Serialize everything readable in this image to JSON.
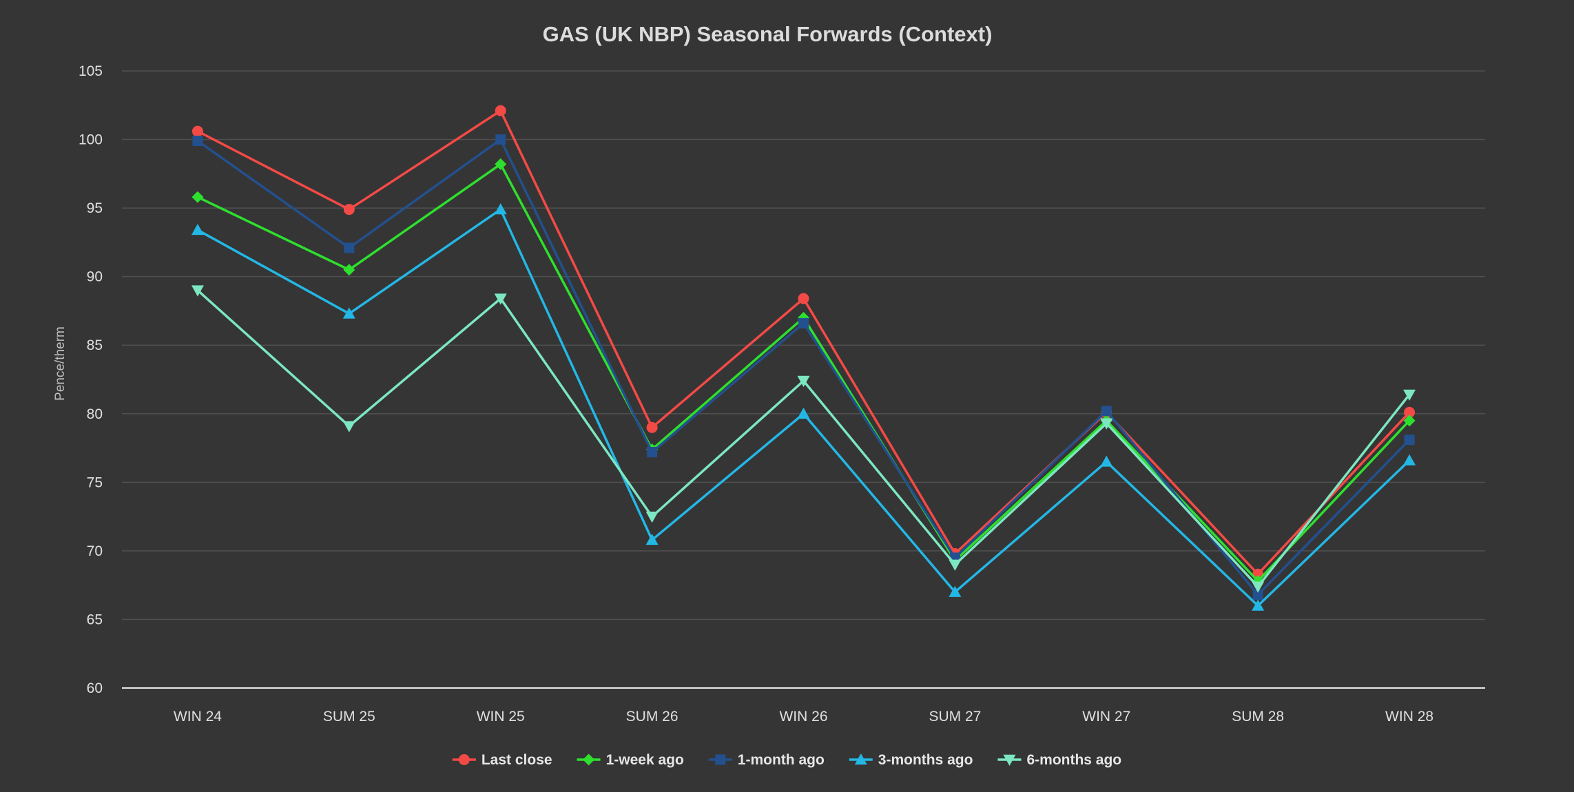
{
  "chart_data": {
    "type": "line",
    "title": "GAS (UK NBP) Seasonal Forwards (Context)",
    "xlabel": "",
    "ylabel": "Pence/therm",
    "ylim": [
      60,
      105
    ],
    "yticks": [
      60,
      65,
      70,
      75,
      80,
      85,
      90,
      95,
      100,
      105
    ],
    "grid": true,
    "legend_position": "bottom-center",
    "categories": [
      "WIN 24",
      "SUM 25",
      "WIN 25",
      "SUM 26",
      "WIN 26",
      "SUM 27",
      "WIN 27",
      "SUM 28",
      "WIN 28"
    ],
    "series": [
      {
        "name": "Last close",
        "color": "#f44a46",
        "marker": "circle",
        "values": [
          100.6,
          94.9,
          102.1,
          79.0,
          88.4,
          69.8,
          80.1,
          68.3,
          80.1
        ]
      },
      {
        "name": "1-week ago",
        "color": "#2ee02e",
        "marker": "diamond",
        "values": [
          95.8,
          90.5,
          98.2,
          77.4,
          87.0,
          69.3,
          79.5,
          67.8,
          79.5
        ]
      },
      {
        "name": "1-month ago",
        "color": "#23508f",
        "marker": "square",
        "values": [
          99.9,
          92.1,
          100.0,
          77.2,
          86.6,
          69.5,
          80.2,
          66.8,
          78.1
        ]
      },
      {
        "name": "3-months ago",
        "color": "#23b7e5",
        "marker": "triangle",
        "values": [
          93.4,
          87.3,
          94.9,
          70.8,
          80.0,
          67.0,
          76.5,
          66.0,
          76.6
        ]
      },
      {
        "name": "6-months ago",
        "color": "#7ce7c1",
        "marker": "triangle-down",
        "values": [
          89.0,
          79.1,
          88.4,
          72.5,
          82.4,
          69.0,
          79.3,
          67.4,
          81.4
        ]
      }
    ]
  }
}
